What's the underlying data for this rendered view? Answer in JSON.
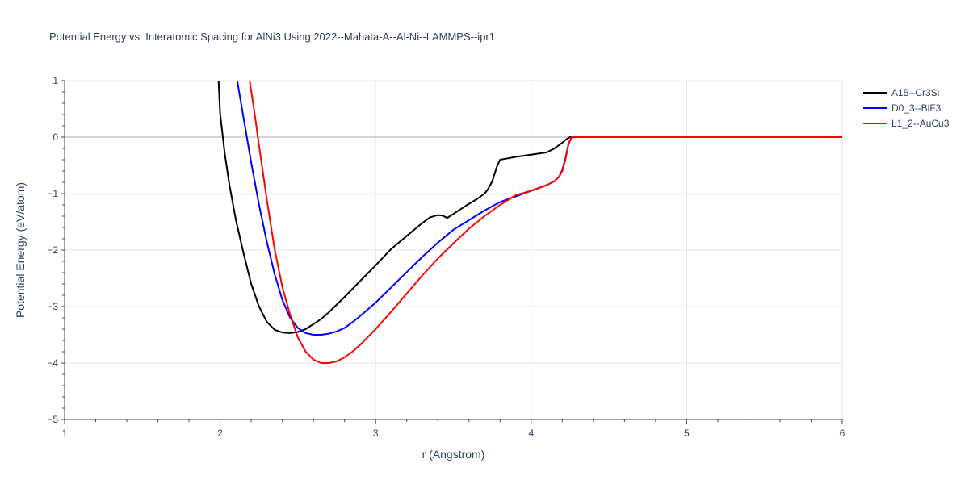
{
  "chart_data": {
    "type": "line",
    "title": "Potential Energy vs. Interatomic Spacing for AlNi3 Using 2022--Mahata-A--Al-Ni--LAMMPS--ipr1",
    "xlabel": "r (Angstrom)",
    "ylabel": "Potential Energy (eV/atom)",
    "xlim": [
      1,
      6
    ],
    "ylim": [
      -5,
      1
    ],
    "xticks": [
      1,
      2,
      3,
      4,
      5,
      6
    ],
    "xtick_labels": [
      "1",
      "2",
      "3",
      "4",
      "5",
      "6"
    ],
    "yticks": [
      -5,
      -4,
      -3,
      -2,
      -1,
      0,
      1
    ],
    "ytick_labels": [
      "−5",
      "−4",
      "−3",
      "−2",
      "−1",
      "0",
      "1"
    ],
    "grid": true,
    "legend_position": "top-right",
    "series": [
      {
        "name": "A15--Cr3Si",
        "color": "#000000",
        "x": [
          1.99,
          2.0,
          2.03,
          2.06,
          2.1,
          2.15,
          2.2,
          2.25,
          2.3,
          2.35,
          2.4,
          2.45,
          2.5,
          2.55,
          2.6,
          2.65,
          2.7,
          2.8,
          2.9,
          3.0,
          3.1,
          3.2,
          3.3,
          3.35,
          3.4,
          3.43,
          3.46,
          3.5,
          3.55,
          3.6,
          3.65,
          3.7,
          3.72,
          3.75,
          3.78,
          3.8,
          3.82,
          3.9,
          4.0,
          4.1,
          4.15,
          4.2,
          4.23,
          4.25,
          4.26,
          4.3,
          4.5,
          5.0,
          5.5,
          6.0
        ],
        "y": [
          1.0,
          0.42,
          -0.3,
          -0.85,
          -1.45,
          -2.05,
          -2.6,
          -3.0,
          -3.27,
          -3.41,
          -3.46,
          -3.47,
          -3.45,
          -3.4,
          -3.31,
          -3.22,
          -3.1,
          -2.83,
          -2.55,
          -2.27,
          -1.98,
          -1.75,
          -1.52,
          -1.42,
          -1.38,
          -1.39,
          -1.43,
          -1.36,
          -1.27,
          -1.18,
          -1.1,
          -1.0,
          -0.93,
          -0.78,
          -0.52,
          -0.4,
          -0.39,
          -0.35,
          -0.31,
          -0.27,
          -0.2,
          -0.1,
          -0.03,
          0.0,
          0.0,
          0.0,
          0.0,
          0.0,
          0.0,
          0.0
        ]
      },
      {
        "name": "D0_3--BiF3",
        "color": "#0000ff",
        "x": [
          2.11,
          2.15,
          2.2,
          2.25,
          2.3,
          2.35,
          2.4,
          2.45,
          2.5,
          2.55,
          2.6,
          2.65,
          2.7,
          2.75,
          2.8,
          2.85,
          2.9,
          3.0,
          3.1,
          3.2,
          3.3,
          3.4,
          3.5,
          3.6,
          3.7,
          3.8,
          3.9,
          4.0,
          4.1,
          4.15,
          4.18,
          4.2,
          4.22,
          4.24,
          4.26,
          4.3,
          4.5,
          5.0,
          5.5,
          6.0
        ],
        "y": [
          1.0,
          0.35,
          -0.45,
          -1.2,
          -1.85,
          -2.42,
          -2.88,
          -3.2,
          -3.38,
          -3.47,
          -3.5,
          -3.5,
          -3.48,
          -3.44,
          -3.38,
          -3.28,
          -3.17,
          -2.93,
          -2.66,
          -2.39,
          -2.12,
          -1.87,
          -1.64,
          -1.47,
          -1.3,
          -1.15,
          -1.05,
          -0.95,
          -0.85,
          -0.78,
          -0.7,
          -0.58,
          -0.38,
          -0.12,
          0.0,
          0.0,
          0.0,
          0.0,
          0.0,
          0.0
        ]
      },
      {
        "name": "L1_2--AuCu3",
        "color": "#ff0000",
        "x": [
          2.19,
          2.22,
          2.25,
          2.3,
          2.35,
          2.4,
          2.45,
          2.5,
          2.55,
          2.6,
          2.65,
          2.7,
          2.75,
          2.8,
          2.85,
          2.9,
          3.0,
          3.1,
          3.2,
          3.3,
          3.4,
          3.5,
          3.6,
          3.7,
          3.8,
          3.9,
          4.0,
          4.1,
          4.15,
          4.18,
          4.2,
          4.22,
          4.24,
          4.26,
          4.3,
          4.5,
          5.0,
          5.5,
          6.0
        ],
        "y": [
          1.0,
          0.45,
          -0.15,
          -1.1,
          -1.98,
          -2.65,
          -3.15,
          -3.55,
          -3.8,
          -3.94,
          -4.0,
          -4.0,
          -3.97,
          -3.9,
          -3.8,
          -3.68,
          -3.4,
          -3.09,
          -2.77,
          -2.45,
          -2.15,
          -1.88,
          -1.62,
          -1.4,
          -1.2,
          -1.03,
          -0.95,
          -0.85,
          -0.78,
          -0.7,
          -0.6,
          -0.4,
          -0.13,
          0.0,
          0.0,
          0.0,
          0.0,
          0.0,
          0.0
        ]
      }
    ]
  }
}
